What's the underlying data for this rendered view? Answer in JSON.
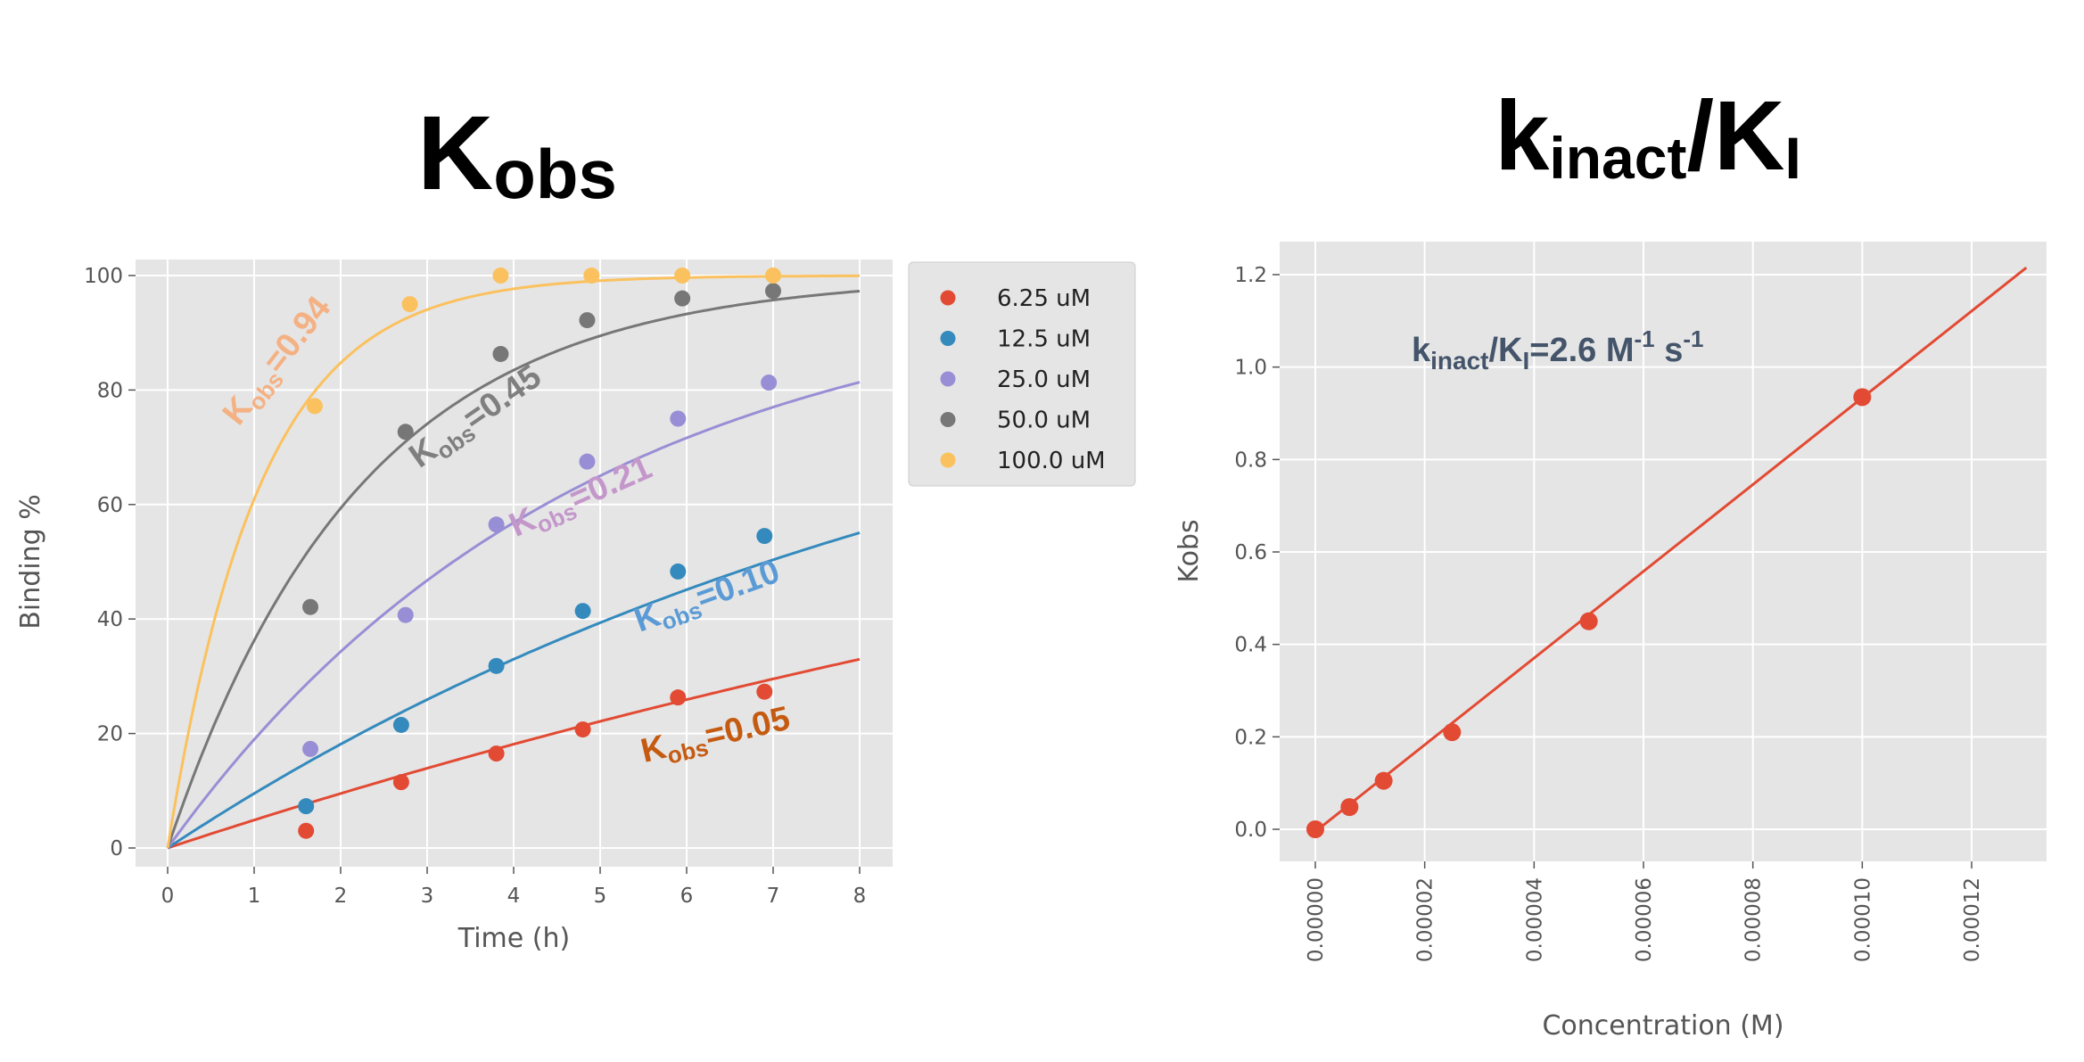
{
  "titles": {
    "left": {
      "main": "K",
      "sub": "obs"
    },
    "right": {
      "main1": "k",
      "sub1": "inact",
      "main2": "/K",
      "sub2": "I"
    }
  },
  "chart_data": [
    {
      "type": "scatter",
      "xlabel": "Time (h)",
      "ylabel": "Binding %",
      "xlim": [
        -0.35,
        8.4
      ],
      "ylim": [
        -3.5,
        104
      ],
      "xticks": [
        0,
        1,
        2,
        3,
        4,
        5,
        6,
        7,
        8
      ],
      "yticks": [
        0,
        20,
        40,
        60,
        80,
        100
      ],
      "grid": true,
      "legend_position": "outside-right-top",
      "series": [
        {
          "name": "6.25 uM",
          "color": "#E24A33",
          "kobs": 0.05,
          "points": [
            [
              1.6,
              3.0
            ],
            [
              2.7,
              11.5
            ],
            [
              3.8,
              16.5
            ],
            [
              4.8,
              20.7
            ],
            [
              5.9,
              26.3
            ],
            [
              6.9,
              27.3
            ]
          ]
        },
        {
          "name": "12.5 uM",
          "color": "#348ABD",
          "kobs": 0.1,
          "points": [
            [
              1.6,
              7.3
            ],
            [
              2.7,
              21.5
            ],
            [
              3.8,
              31.8
            ],
            [
              4.8,
              41.4
            ],
            [
              5.9,
              48.3
            ],
            [
              6.9,
              54.5
            ]
          ]
        },
        {
          "name": "25.0 uM",
          "color": "#988ED5",
          "kobs": 0.21,
          "points": [
            [
              1.65,
              17.3
            ],
            [
              2.75,
              40.7
            ],
            [
              3.8,
              56.5
            ],
            [
              4.85,
              67.5
            ],
            [
              5.9,
              75.0
            ],
            [
              6.95,
              81.3
            ]
          ]
        },
        {
          "name": "50.0 uM",
          "color": "#777777",
          "kobs": 0.45,
          "points": [
            [
              1.65,
              42.1
            ],
            [
              2.75,
              72.7
            ],
            [
              3.85,
              86.3
            ],
            [
              4.85,
              92.2
            ],
            [
              5.95,
              96.0
            ],
            [
              7.0,
              97.3
            ]
          ]
        },
        {
          "name": "100.0 uM",
          "color": "#FBC15E",
          "kobs": 0.94,
          "points": [
            [
              1.7,
              77.2
            ],
            [
              2.8,
              95.0
            ],
            [
              3.85,
              100.0
            ],
            [
              4.9,
              100.0
            ],
            [
              5.95,
              100.0
            ],
            [
              7.0,
              100.0
            ]
          ]
        }
      ],
      "fit": {
        "model": "100*(1-exp(-kobs*t))",
        "t_range": [
          0,
          8
        ]
      },
      "annotations": [
        {
          "prefix": "K",
          "sub": "obs",
          "value": "=0.94",
          "color": "#F4B183"
        },
        {
          "prefix": "K",
          "sub": "obs",
          "value": "=0.45",
          "color": "#7F7F7F"
        },
        {
          "prefix": "K",
          "sub": "obs",
          "value": "=0.21",
          "color": "#C497CB"
        },
        {
          "prefix": "K",
          "sub": "obs",
          "value": "=0.10",
          "color": "#5B9BD5"
        },
        {
          "prefix": "K",
          "sub": "obs",
          "value": "=0.05",
          "color": "#C55A11"
        }
      ]
    },
    {
      "type": "scatter",
      "xlabel": "Concentration (M)",
      "ylabel": "Kobs",
      "xlim": [
        -6.5e-06,
        0.0001365
      ],
      "ylim": [
        -0.07,
        1.25
      ],
      "xticks": [
        "0.00000",
        "0.00002",
        "0.00004",
        "0.00006",
        "0.00008",
        "0.00010",
        "0.00012"
      ],
      "xtick_values": [
        0,
        2e-05,
        4e-05,
        6e-05,
        8e-05,
        0.0001,
        0.00012
      ],
      "yticks": [
        "0.0",
        "0.2",
        "0.4",
        "0.6",
        "0.8",
        "1.0",
        "1.2"
      ],
      "ytick_values": [
        0,
        0.2,
        0.4,
        0.6,
        0.8,
        1.0,
        1.2
      ],
      "grid": true,
      "color": "#E24A33",
      "points": [
        [
          0,
          0
        ],
        [
          6.25e-06,
          0.048
        ],
        [
          1.25e-05,
          0.105
        ],
        [
          2.5e-05,
          0.21
        ],
        [
          5e-05,
          0.45
        ],
        [
          0.0001,
          0.935
        ]
      ],
      "fit_line": [
        [
          0,
          -0.005
        ],
        [
          0.00013,
          1.215
        ]
      ],
      "annotation": {
        "k": "k",
        "inact": "inact",
        "slash_K": "/K",
        "I": "I",
        "eq": "=2.6 M",
        "exp1": "-1",
        "s": " s",
        "exp2": "-1",
        "color": "#44546A"
      }
    }
  ]
}
